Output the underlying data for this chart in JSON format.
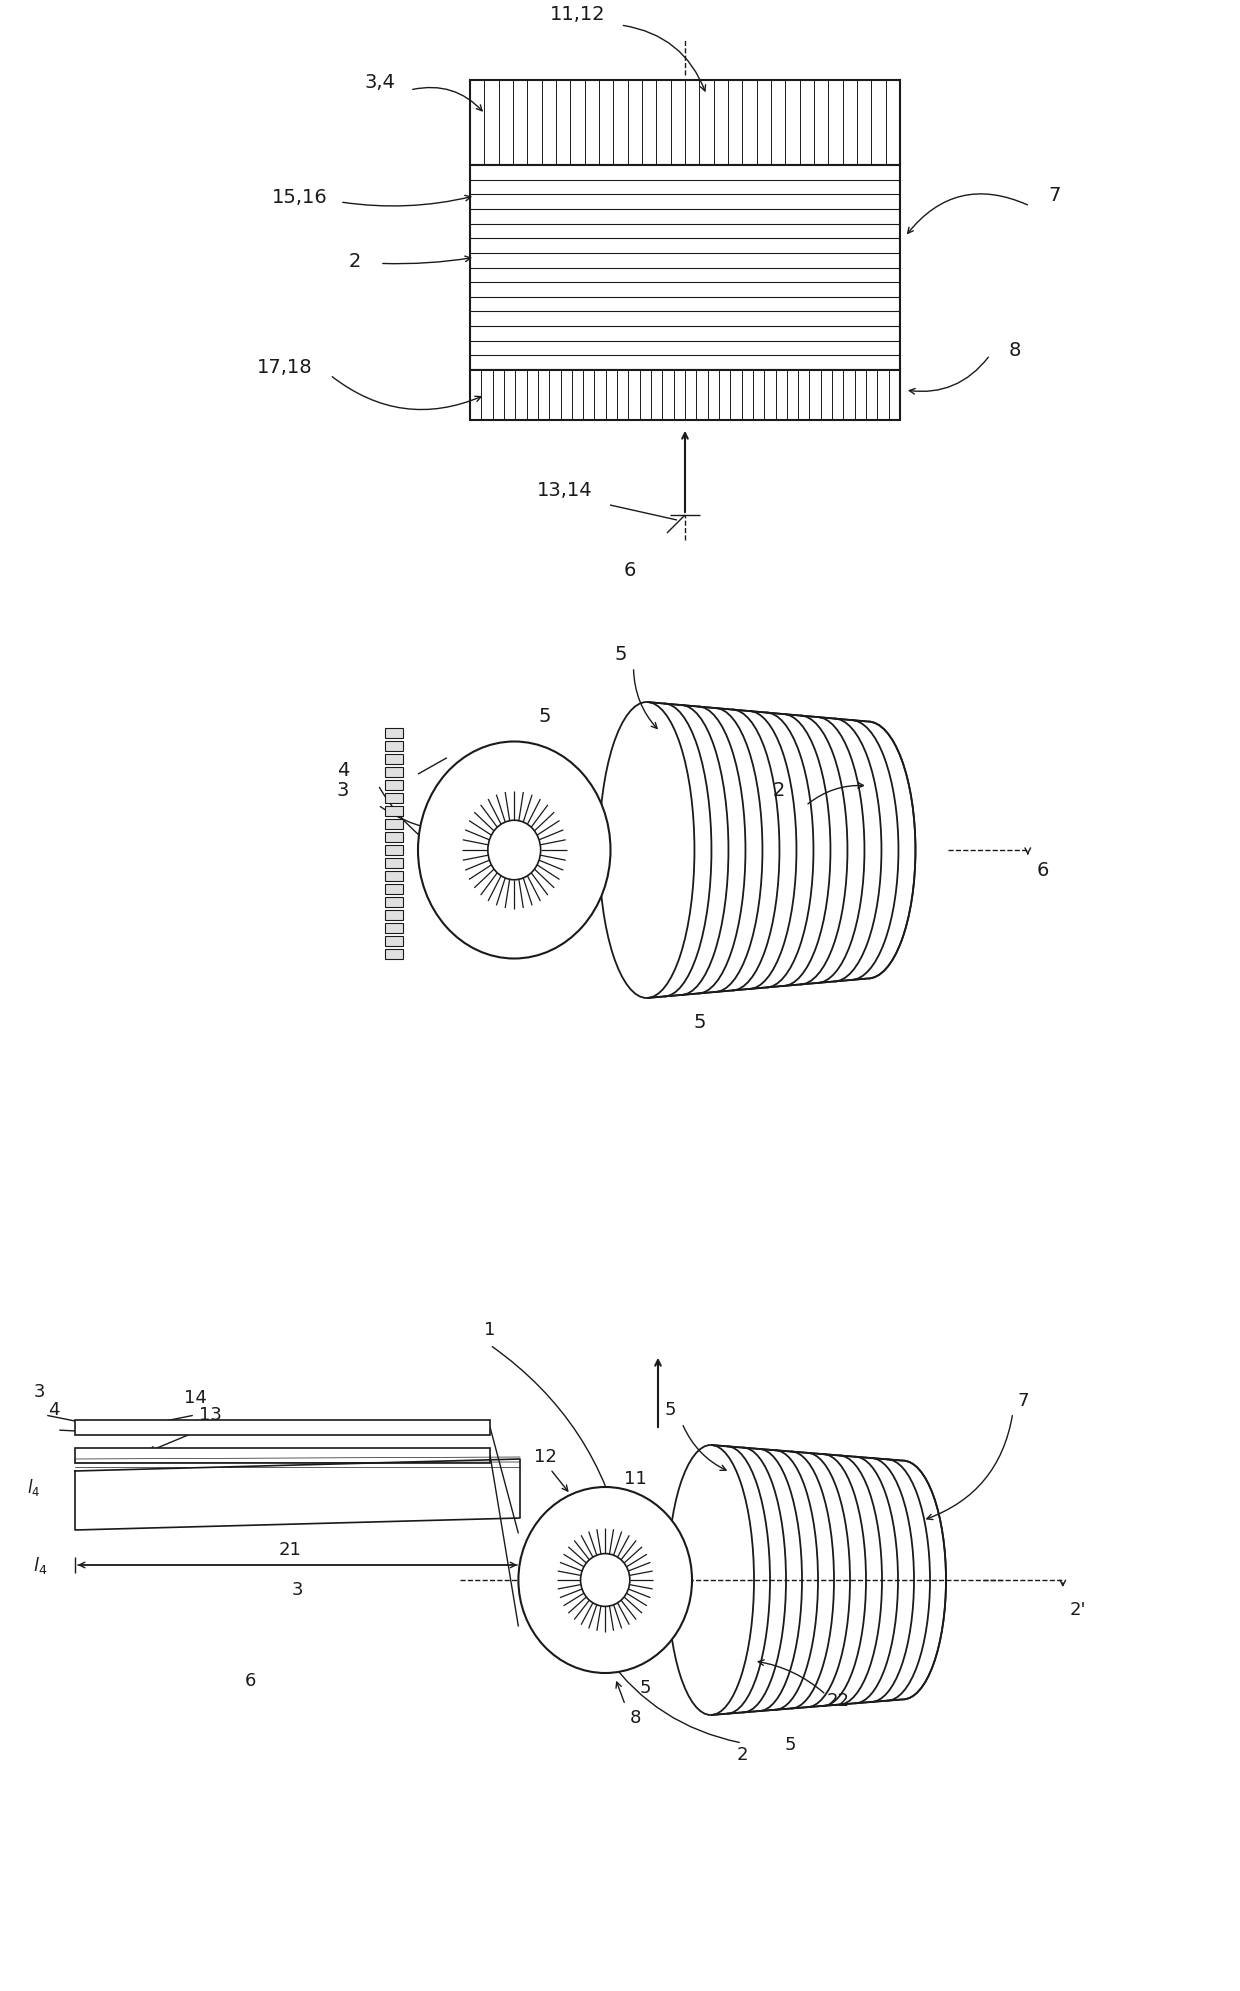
{
  "bg_color": "#ffffff",
  "line_color": "#1a1a1a",
  "fig_width": 12.4,
  "fig_height": 19.91
}
